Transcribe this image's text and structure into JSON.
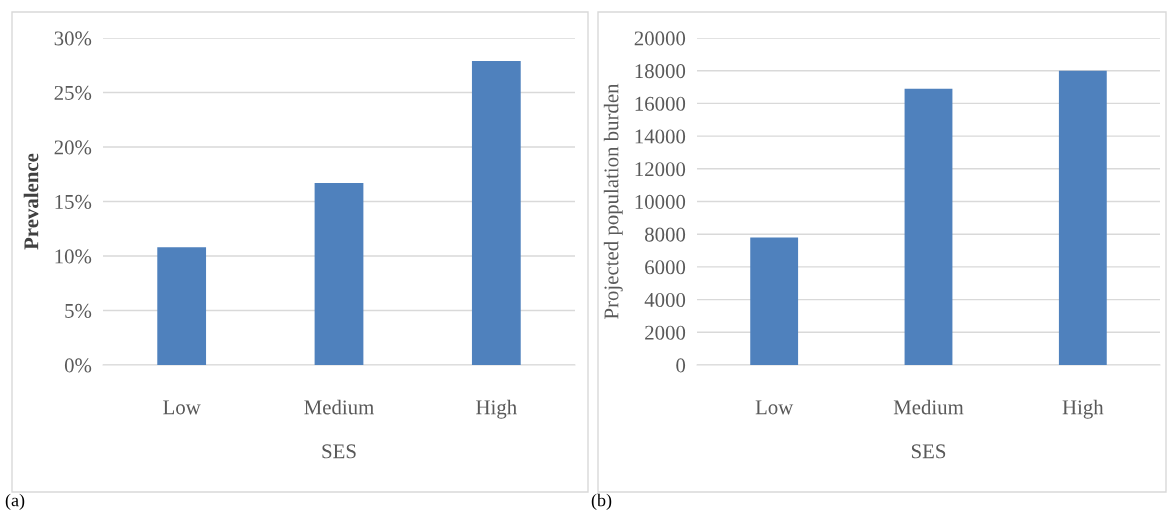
{
  "chart_data": [
    {
      "type": "bar",
      "categories": [
        "Low",
        "Medium",
        "High"
      ],
      "values": [
        10.8,
        16.7,
        27.9
      ],
      "color": "#4f81bd",
      "xlabel": "SES",
      "ylabel": "Prevalence",
      "ylim": [
        0,
        30
      ],
      "yticks": [
        {
          "value": 0,
          "label": "0%"
        },
        {
          "value": 5,
          "label": "5%"
        },
        {
          "value": 10,
          "label": "10%"
        },
        {
          "value": 15,
          "label": "15%"
        },
        {
          "value": 20,
          "label": "20%"
        },
        {
          "value": 25,
          "label": "25%"
        },
        {
          "value": 30,
          "label": "30%"
        }
      ],
      "grid": "y",
      "annotations": [
        "(a)"
      ]
    },
    {
      "type": "bar",
      "categories": [
        "Low",
        "Medium",
        "High"
      ],
      "values": [
        7800,
        16900,
        18000
      ],
      "color": "#4f81bd",
      "xlabel": "SES",
      "ylabel": "Projected population burden",
      "ylim": [
        0,
        20000
      ],
      "yticks": [
        0,
        2000,
        4000,
        6000,
        8000,
        10000,
        12000,
        14000,
        16000,
        18000,
        20000
      ],
      "grid": "y",
      "annotations": [
        "(b)"
      ]
    }
  ]
}
